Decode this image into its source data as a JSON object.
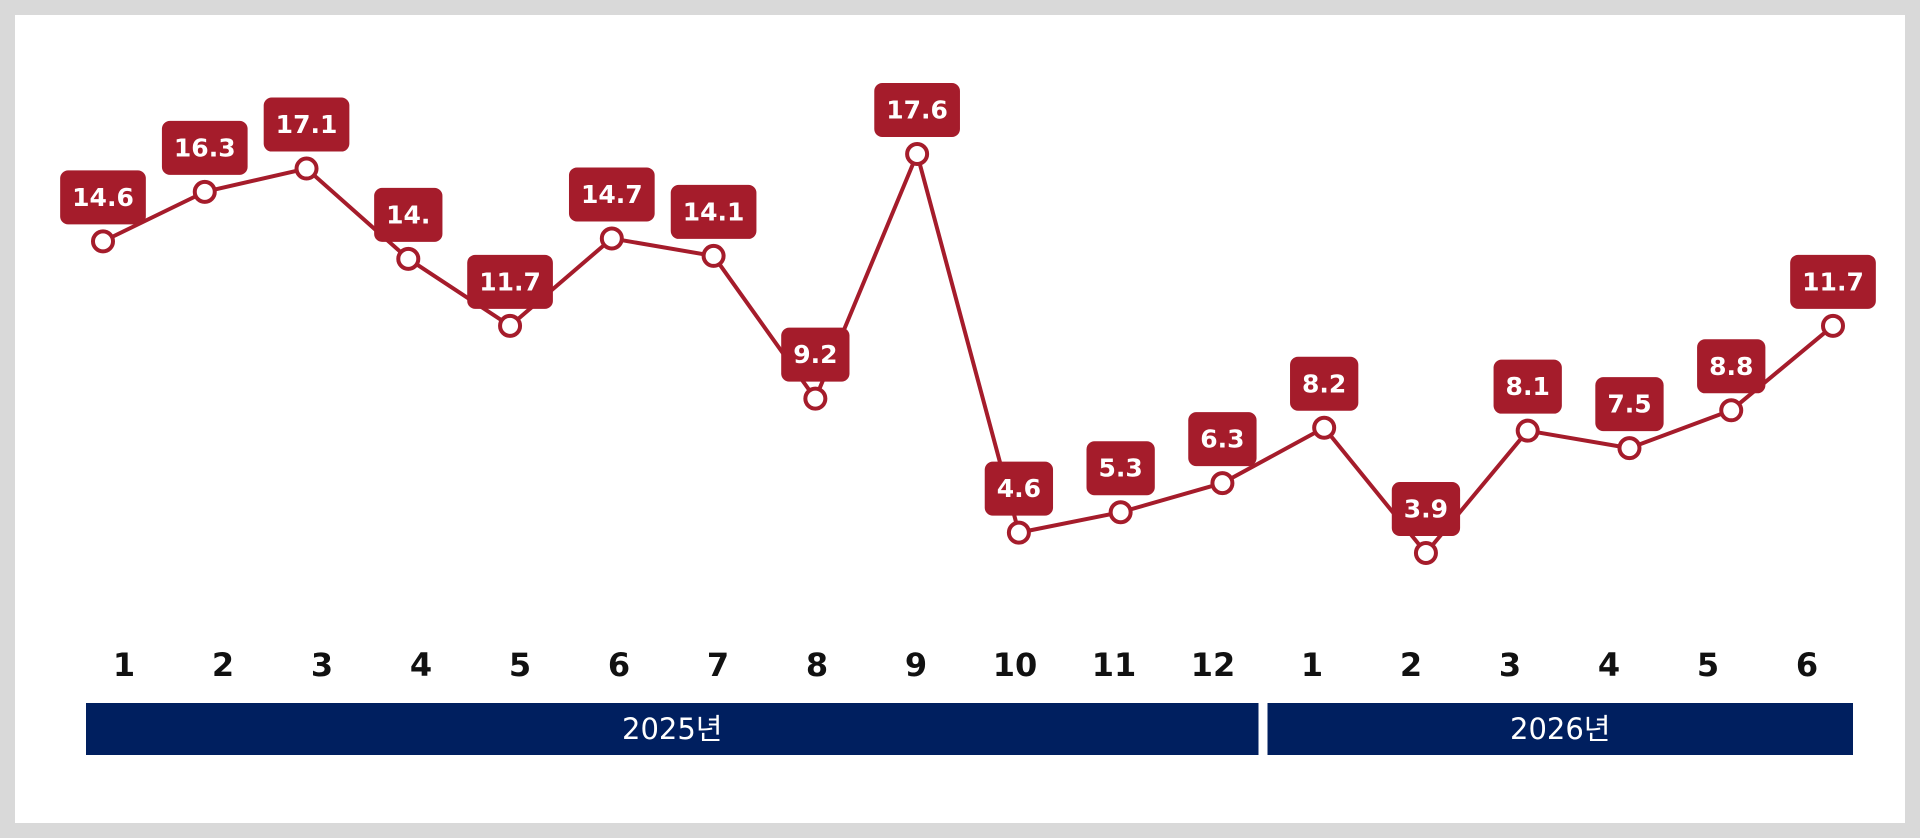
{
  "chart_data": {
    "type": "line",
    "categories": [
      "1",
      "2",
      "3",
      "4",
      "5",
      "6",
      "7",
      "8",
      "9",
      "10",
      "11",
      "12",
      "1",
      "2",
      "3",
      "4",
      "5",
      "6"
    ],
    "groups": [
      "2025년",
      "2026년"
    ],
    "values": [
      14.6,
      16.3,
      17.1,
      14,
      11.7,
      14.7,
      14.1,
      9.2,
      17.6,
      4.6,
      5.3,
      6.3,
      8.2,
      3.9,
      8.1,
      7.5,
      8.8,
      11.7
    ],
    "value_labels": [
      "14.6",
      "16.3",
      "17.1",
      "14.",
      "11.7",
      "14.7",
      "14.1",
      "9.2",
      "17.6",
      "4.6",
      "5.3",
      "6.3",
      "8.2",
      "3.9",
      "8.1",
      "7.5",
      "8.8",
      "11.7"
    ],
    "color": "#a51c2b",
    "group_color": "#001f5f"
  }
}
